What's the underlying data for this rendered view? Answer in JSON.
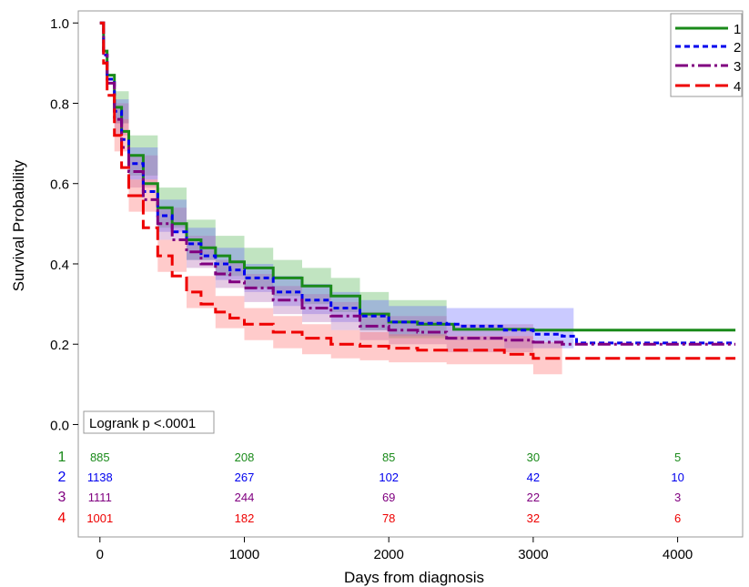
{
  "chart_data": {
    "type": "line",
    "title": "",
    "xlabel": "Days from diagnosis",
    "ylabel": "Survival Probability",
    "xlim": [
      -150,
      4450
    ],
    "ylim": [
      -0.28,
      1.03
    ],
    "xticks": [
      0,
      1000,
      2000,
      3000,
      4000
    ],
    "yticks": [
      0.0,
      0.2,
      0.4,
      0.6,
      0.8,
      1.0
    ],
    "ytick_labels": [
      "0.0",
      "0.2",
      "0.4",
      "0.6",
      "0.8",
      "1.0"
    ],
    "legend_position": "top-right",
    "annotation": "Logrank p <.0001",
    "at_risk": {
      "times": [
        0,
        1000,
        2000,
        3000,
        4000
      ],
      "rows": [
        {
          "label": "1",
          "color": "#1a8a1a",
          "counts": [
            "885",
            "208",
            "85",
            "30",
            "5"
          ]
        },
        {
          "label": "2",
          "color": "#0000ee",
          "counts": [
            "1138",
            "267",
            "102",
            "42",
            "10"
          ]
        },
        {
          "label": "3",
          "color": "#800080",
          "counts": [
            "1111",
            "244",
            "69",
            "22",
            "3"
          ]
        },
        {
          "label": "4",
          "color": "#ee0000",
          "counts": [
            "1001",
            "182",
            "78",
            "32",
            "6"
          ]
        }
      ]
    },
    "series": [
      {
        "name": "1",
        "color": "#1a8a1a",
        "dash": "solid",
        "band_color": "#4db34d",
        "points": [
          [
            0,
            1.0
          ],
          [
            25,
            0.93
          ],
          [
            50,
            0.87
          ],
          [
            100,
            0.79
          ],
          [
            150,
            0.73
          ],
          [
            200,
            0.67
          ],
          [
            300,
            0.6
          ],
          [
            400,
            0.54
          ],
          [
            500,
            0.5
          ],
          [
            600,
            0.46
          ],
          [
            700,
            0.44
          ],
          [
            800,
            0.42
          ],
          [
            900,
            0.405
          ],
          [
            1000,
            0.39
          ],
          [
            1200,
            0.365
          ],
          [
            1400,
            0.345
          ],
          [
            1600,
            0.32
          ],
          [
            1800,
            0.275
          ],
          [
            2000,
            0.255
          ],
          [
            2200,
            0.25
          ],
          [
            2400,
            0.25
          ],
          [
            2450,
            0.237
          ],
          [
            3000,
            0.235
          ],
          [
            4400,
            0.235
          ]
        ],
        "upper": [
          [
            0,
            1.0
          ],
          [
            100,
            0.83
          ],
          [
            200,
            0.72
          ],
          [
            400,
            0.59
          ],
          [
            600,
            0.51
          ],
          [
            800,
            0.47
          ],
          [
            1000,
            0.44
          ],
          [
            1200,
            0.41
          ],
          [
            1400,
            0.39
          ],
          [
            1600,
            0.365
          ],
          [
            1800,
            0.33
          ],
          [
            2000,
            0.31
          ],
          [
            2400,
            0.305
          ]
        ],
        "lower": [
          [
            0,
            1.0
          ],
          [
            100,
            0.75
          ],
          [
            200,
            0.62
          ],
          [
            400,
            0.49
          ],
          [
            600,
            0.41
          ],
          [
            800,
            0.37
          ],
          [
            1000,
            0.34
          ],
          [
            1200,
            0.32
          ],
          [
            1400,
            0.3
          ],
          [
            1600,
            0.28
          ],
          [
            1800,
            0.235
          ],
          [
            2000,
            0.215
          ],
          [
            2400,
            0.205
          ]
        ]
      },
      {
        "name": "2",
        "color": "#0000ee",
        "dash": "6,4",
        "band_color": "#6666ff",
        "points": [
          [
            0,
            1.0
          ],
          [
            25,
            0.92
          ],
          [
            50,
            0.86
          ],
          [
            100,
            0.78
          ],
          [
            150,
            0.71
          ],
          [
            200,
            0.65
          ],
          [
            300,
            0.58
          ],
          [
            400,
            0.52
          ],
          [
            500,
            0.48
          ],
          [
            600,
            0.45
          ],
          [
            700,
            0.42
          ],
          [
            800,
            0.4
          ],
          [
            900,
            0.385
          ],
          [
            1000,
            0.365
          ],
          [
            1200,
            0.33
          ],
          [
            1400,
            0.31
          ],
          [
            1600,
            0.29
          ],
          [
            1800,
            0.27
          ],
          [
            2000,
            0.255
          ],
          [
            2200,
            0.252
          ],
          [
            2400,
            0.25
          ],
          [
            2500,
            0.245
          ],
          [
            2800,
            0.235
          ],
          [
            3000,
            0.225
          ],
          [
            3200,
            0.22
          ],
          [
            3300,
            0.203
          ],
          [
            4400,
            0.203
          ]
        ],
        "upper": [
          [
            0,
            1.0
          ],
          [
            100,
            0.81
          ],
          [
            200,
            0.69
          ],
          [
            400,
            0.56
          ],
          [
            600,
            0.49
          ],
          [
            800,
            0.44
          ],
          [
            1000,
            0.4
          ],
          [
            1200,
            0.37
          ],
          [
            1400,
            0.35
          ],
          [
            1600,
            0.33
          ],
          [
            1800,
            0.31
          ],
          [
            2000,
            0.295
          ],
          [
            2400,
            0.29
          ],
          [
            2800,
            0.29
          ],
          [
            3280,
            0.29
          ]
        ],
        "lower": [
          [
            0,
            1.0
          ],
          [
            100,
            0.75
          ],
          [
            200,
            0.61
          ],
          [
            400,
            0.48
          ],
          [
            600,
            0.41
          ],
          [
            800,
            0.36
          ],
          [
            1000,
            0.33
          ],
          [
            1200,
            0.295
          ],
          [
            1400,
            0.275
          ],
          [
            1600,
            0.255
          ],
          [
            1800,
            0.235
          ],
          [
            2000,
            0.22
          ],
          [
            2400,
            0.21
          ],
          [
            2800,
            0.19
          ],
          [
            3280,
            0.14
          ]
        ]
      },
      {
        "name": "3",
        "color": "#800080",
        "dash": "14,4,3,4",
        "band_color": "#b366b3",
        "points": [
          [
            0,
            1.0
          ],
          [
            25,
            0.92
          ],
          [
            50,
            0.85
          ],
          [
            100,
            0.76
          ],
          [
            150,
            0.69
          ],
          [
            200,
            0.63
          ],
          [
            300,
            0.56
          ],
          [
            400,
            0.5
          ],
          [
            500,
            0.46
          ],
          [
            600,
            0.43
          ],
          [
            700,
            0.4
          ],
          [
            800,
            0.375
          ],
          [
            900,
            0.355
          ],
          [
            1000,
            0.34
          ],
          [
            1200,
            0.31
          ],
          [
            1400,
            0.29
          ],
          [
            1600,
            0.27
          ],
          [
            1800,
            0.245
          ],
          [
            2000,
            0.235
          ],
          [
            2200,
            0.23
          ],
          [
            2400,
            0.215
          ],
          [
            2800,
            0.21
          ],
          [
            3000,
            0.205
          ],
          [
            3200,
            0.2
          ],
          [
            4400,
            0.2
          ]
        ],
        "upper": [
          [
            0,
            1.0
          ],
          [
            100,
            0.8
          ],
          [
            200,
            0.67
          ],
          [
            400,
            0.54
          ],
          [
            600,
            0.47
          ],
          [
            800,
            0.41
          ],
          [
            1000,
            0.375
          ],
          [
            1200,
            0.345
          ],
          [
            1400,
            0.325
          ],
          [
            1600,
            0.305
          ],
          [
            1800,
            0.28
          ],
          [
            2000,
            0.27
          ],
          [
            2400,
            0.25
          ],
          [
            3000,
            0.25
          ]
        ],
        "lower": [
          [
            0,
            1.0
          ],
          [
            100,
            0.72
          ],
          [
            200,
            0.59
          ],
          [
            400,
            0.46
          ],
          [
            600,
            0.39
          ],
          [
            800,
            0.34
          ],
          [
            1000,
            0.305
          ],
          [
            1200,
            0.275
          ],
          [
            1400,
            0.255
          ],
          [
            1600,
            0.235
          ],
          [
            1800,
            0.21
          ],
          [
            2000,
            0.2
          ],
          [
            2400,
            0.18
          ],
          [
            3000,
            0.16
          ]
        ]
      },
      {
        "name": "4",
        "color": "#ee0000",
        "dash": "16,6",
        "band_color": "#ff6b6b",
        "points": [
          [
            0,
            1.0
          ],
          [
            25,
            0.9
          ],
          [
            50,
            0.82
          ],
          [
            100,
            0.72
          ],
          [
            150,
            0.64
          ],
          [
            200,
            0.57
          ],
          [
            300,
            0.49
          ],
          [
            400,
            0.42
          ],
          [
            500,
            0.37
          ],
          [
            600,
            0.33
          ],
          [
            700,
            0.3
          ],
          [
            800,
            0.28
          ],
          [
            900,
            0.265
          ],
          [
            1000,
            0.25
          ],
          [
            1200,
            0.23
          ],
          [
            1400,
            0.215
          ],
          [
            1600,
            0.2
          ],
          [
            1800,
            0.195
          ],
          [
            2000,
            0.19
          ],
          [
            2200,
            0.185
          ],
          [
            2400,
            0.185
          ],
          [
            2800,
            0.175
          ],
          [
            3000,
            0.165
          ],
          [
            3200,
            0.165
          ],
          [
            4400,
            0.165
          ]
        ],
        "upper": [
          [
            0,
            1.0
          ],
          [
            100,
            0.76
          ],
          [
            200,
            0.61
          ],
          [
            400,
            0.46
          ],
          [
            600,
            0.37
          ],
          [
            800,
            0.32
          ],
          [
            1000,
            0.29
          ],
          [
            1200,
            0.27
          ],
          [
            1400,
            0.25
          ],
          [
            1600,
            0.235
          ],
          [
            1800,
            0.23
          ],
          [
            2000,
            0.225
          ],
          [
            2400,
            0.22
          ],
          [
            3000,
            0.205
          ],
          [
            3200,
            0.205
          ]
        ],
        "lower": [
          [
            0,
            1.0
          ],
          [
            100,
            0.68
          ],
          [
            200,
            0.53
          ],
          [
            400,
            0.38
          ],
          [
            600,
            0.29
          ],
          [
            800,
            0.24
          ],
          [
            1000,
            0.21
          ],
          [
            1200,
            0.19
          ],
          [
            1400,
            0.175
          ],
          [
            1600,
            0.165
          ],
          [
            1800,
            0.16
          ],
          [
            2000,
            0.155
          ],
          [
            2400,
            0.15
          ],
          [
            3000,
            0.125
          ],
          [
            3200,
            0.115
          ]
        ]
      }
    ]
  }
}
